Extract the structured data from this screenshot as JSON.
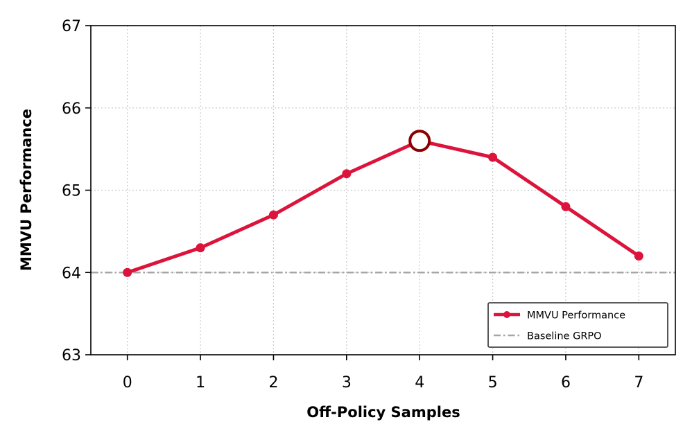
{
  "chart_data": {
    "type": "line",
    "title": "",
    "xlabel": "Off-Policy Samples",
    "ylabel": "MMVU Performance",
    "x": [
      0,
      1,
      2,
      3,
      4,
      5,
      6,
      7
    ],
    "xticks": [
      "0",
      "1",
      "2",
      "3",
      "4",
      "5",
      "6",
      "7"
    ],
    "yticks": [
      "63",
      "64",
      "65",
      "66",
      "67"
    ],
    "xlim": [
      -0.5,
      7.5
    ],
    "ylim": [
      63,
      67
    ],
    "grid": true,
    "legend_position": "bottom-right",
    "series": [
      {
        "name": "MMVU Performance",
        "values": [
          64.0,
          64.3,
          64.7,
          65.2,
          65.6,
          65.4,
          64.8,
          64.2
        ],
        "color": "#dc143c",
        "style": "solid",
        "marker": "circle"
      }
    ],
    "reference_lines": [
      {
        "name": "Baseline GRPO",
        "y": 64.0,
        "color": "#a6a6a6",
        "style": "dashdot"
      }
    ],
    "highlight": {
      "x": 4,
      "y": 65.6,
      "color": "#8b0000",
      "marker": "hollow-circle"
    }
  }
}
